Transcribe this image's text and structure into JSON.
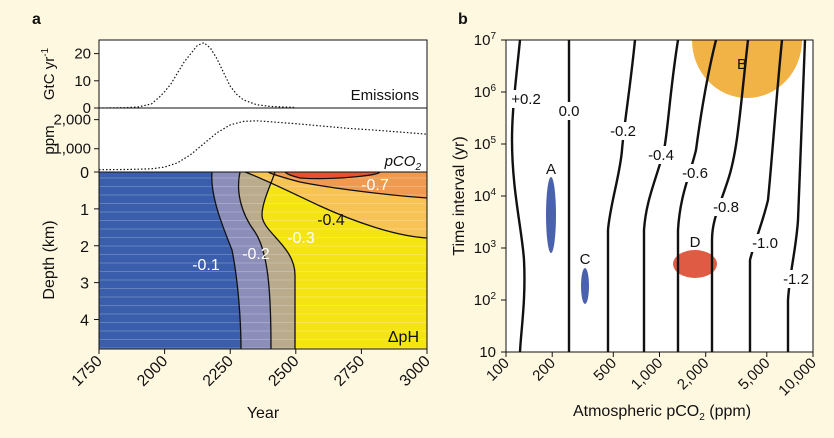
{
  "chart_data": [
    {
      "panel": "a",
      "type": "line",
      "ylabel": "GtC yr",
      "ylabel_sup": "-1",
      "label": "Emissions",
      "yticks": [
        "0",
        "10",
        "20"
      ],
      "ylim": [
        0,
        25
      ],
      "xlim": [
        1750,
        3000
      ],
      "x": [
        1750,
        1850,
        1900,
        1950,
        1980,
        2000,
        2025,
        2050,
        2075,
        2100,
        2125,
        2150,
        2175,
        2200,
        2225,
        2250,
        2275,
        2300,
        2350,
        2400,
        2500
      ],
      "values": [
        0,
        0.1,
        0.4,
        1.5,
        4,
        6,
        9,
        13,
        17,
        20,
        23,
        24,
        22,
        18,
        13,
        8,
        5,
        3,
        1.2,
        0.6,
        0.2
      ]
    },
    {
      "panel": "a",
      "type": "line",
      "ylabel": "ppm",
      "label": "pCO",
      "label_sub": "2",
      "yticks": [
        "1,000",
        "2,000"
      ],
      "ylim": [
        200,
        2400
      ],
      "xlim": [
        1750,
        3000
      ],
      "x": [
        1750,
        1850,
        1900,
        1950,
        2000,
        2050,
        2100,
        2150,
        2200,
        2250,
        2300,
        2350,
        2400,
        2500,
        2600,
        2700,
        2800,
        2900,
        3000
      ],
      "values": [
        280,
        285,
        295,
        310,
        370,
        520,
        800,
        1180,
        1550,
        1820,
        1940,
        1960,
        1930,
        1860,
        1780,
        1700,
        1640,
        1570,
        1500
      ]
    },
    {
      "panel": "a",
      "type": "heatmap",
      "ylabel": "Depth (km)",
      "xlabel": "Year",
      "label": "ΔpH",
      "xticks": [
        "1750",
        "2000",
        "2250",
        "2500",
        "2750",
        "3000"
      ],
      "yticks": [
        "0",
        "1",
        "2",
        "3",
        "4"
      ],
      "xlim": [
        1750,
        3000
      ],
      "ylim": [
        0,
        4.8
      ],
      "contour_labels": [
        "-0.7",
        "-0.4",
        "-0.3",
        "-0.2",
        "-0.1"
      ],
      "colors": [
        "#3a5eab",
        "#8c8eba",
        "#b9ab8c",
        "#f5e414",
        "#f7c355",
        "#ef9a50",
        "#e3532f"
      ]
    },
    {
      "panel": "b",
      "type": "line",
      "xlabel": "Atmospheric pCO",
      "xlabel_sub": "2",
      "xlabel_unit": " (ppm)",
      "ylabel": "Time interval (yr)",
      "xscale": "log",
      "yscale": "log",
      "xlim": [
        100,
        10000
      ],
      "ylim": [
        10,
        10000000
      ],
      "xticks": [
        "100",
        "200",
        "500",
        "1,000",
        "2,000",
        "5,000",
        "10,000"
      ],
      "yticks": [
        "10",
        "10",
        "10",
        "10",
        "10",
        "10",
        "10"
      ],
      "ytick_sups": [
        "",
        "2",
        "3",
        "4",
        "5",
        "6",
        "7"
      ],
      "contour_labels": [
        "+0.2",
        "0.0",
        "-0.2",
        "-0.4",
        "-0.6",
        "-0.8",
        "-1.0",
        "-1.2"
      ],
      "events": [
        {
          "label": "A",
          "x": 230,
          "y": 5000,
          "color": "#4a62ad"
        },
        {
          "label": "C",
          "x": 380,
          "y": 80,
          "color": "#4a62ad"
        },
        {
          "label": "D",
          "x": 1800,
          "y": 450,
          "color": "#e05b44"
        },
        {
          "label": "B",
          "x": 4000,
          "y": 5000000,
          "color": "#f1b345"
        }
      ]
    }
  ],
  "panels": {
    "a": "a",
    "b": "b"
  }
}
